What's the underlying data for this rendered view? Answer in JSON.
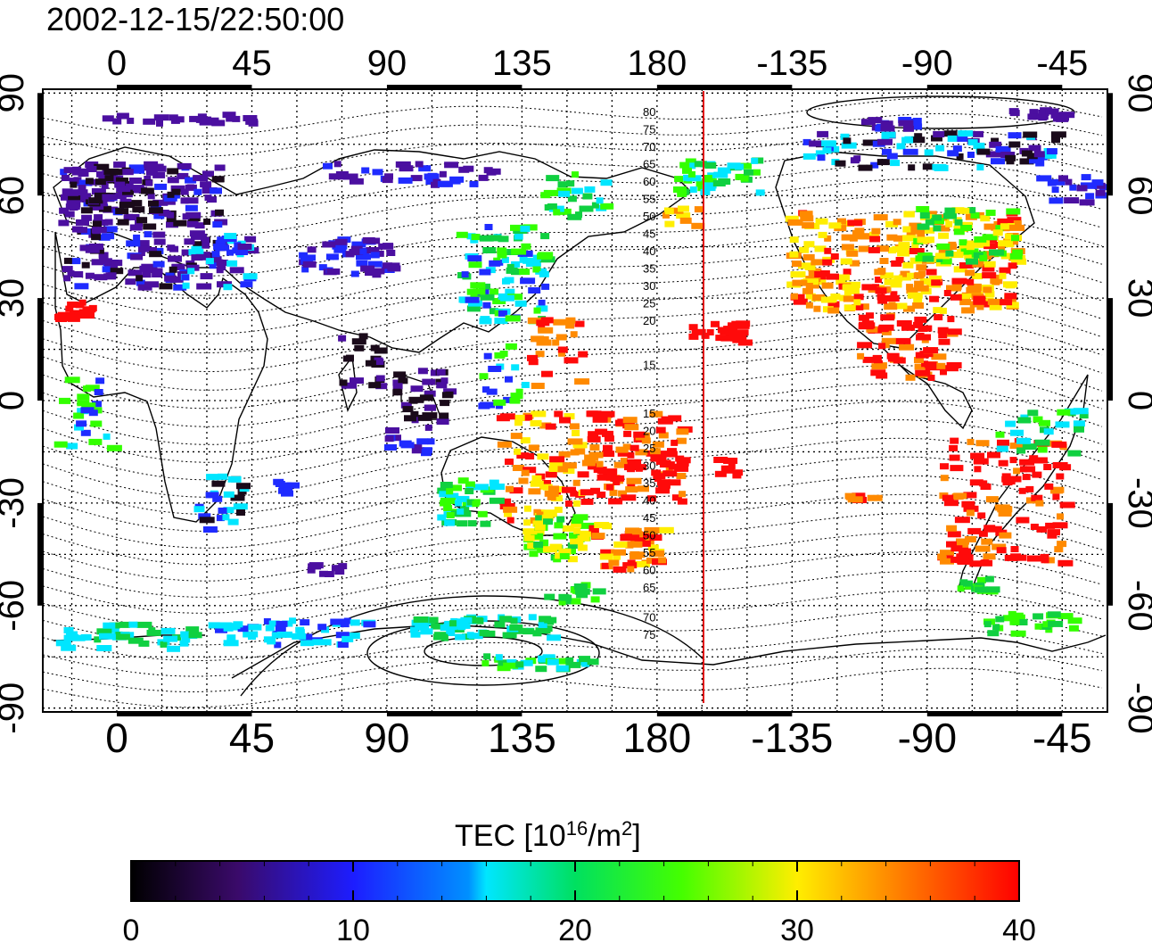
{
  "map": {
    "timestamp": "2002-12-15/22:50:00",
    "x_ticks": [
      "0",
      "45",
      "90",
      "135",
      "180",
      "-135",
      "-90",
      "-45"
    ],
    "y_ticks_left": [
      "90",
      "60",
      "30",
      "0",
      "-30",
      "-60",
      "-90"
    ],
    "y_ticks_right": [
      "90",
      "60",
      "30",
      "0",
      "-30",
      "-60",
      "-90"
    ],
    "contour_labels_north": [
      "80",
      "75",
      "70",
      "65",
      "60",
      "55",
      "50",
      "45",
      "40",
      "35",
      "30",
      "25",
      "20",
      "15"
    ],
    "contour_labels_south": [
      "15",
      "20",
      "25",
      "30",
      "35",
      "40",
      "45",
      "50",
      "55",
      "60",
      "65",
      "70",
      "75"
    ],
    "marker_line_color": "#e01010",
    "colors": {
      "c0": "#1a0a1a",
      "c5": "#4b0fa0",
      "c10": "#1f2bff",
      "c15": "#00e6ff",
      "c20": "#10d040",
      "c25": "#33ff00",
      "c30": "#ffee00",
      "c35": "#ff8a00",
      "c40": "#ff0a0a"
    }
  },
  "colorbar": {
    "title_prefix": "TEC  [10",
    "title_sup1": "16",
    "title_mid": "/m",
    "title_sup2": "2",
    "title_suffix": "]",
    "ticks": [
      "0",
      "10",
      "20",
      "30",
      "40"
    ],
    "range": [
      0,
      40
    ]
  }
}
